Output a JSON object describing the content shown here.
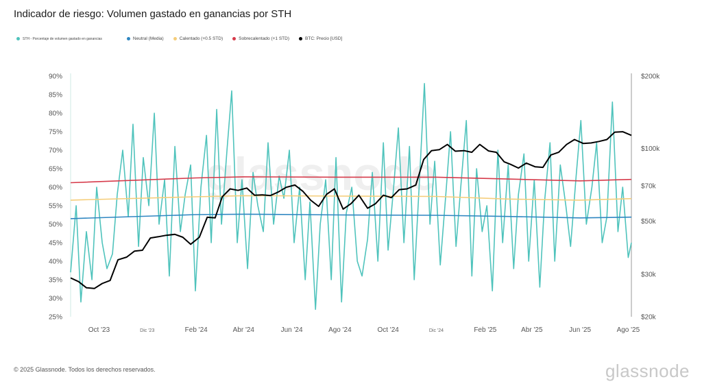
{
  "title": "Indicador de riesgo: Volumen gastado en ganancias por STH",
  "legend": [
    {
      "label": "STH - Porcentaje de volumen gastado en ganancias",
      "color": "#4fc3bc"
    },
    {
      "label": "Neutral (Media)",
      "color": "#2e86c1"
    },
    {
      "label": "Calentado (+0.5 STD)",
      "color": "#f5cd79"
    },
    {
      "label": "Sobrecalentado (+1 STD)",
      "color": "#d63a4a"
    },
    {
      "label": "BTC: Precio [USD]",
      "color": "#000000"
    }
  ],
  "footer": "© 2025 Glassnode. Todos los derechos reservados.",
  "brand": "glassnode",
  "watermark": "glassnode",
  "colors": {
    "sth": "#4fc3bc",
    "neutral": "#2e86c1",
    "heated": "#f5cd79",
    "overheated": "#d63a4a",
    "price": "#000000"
  },
  "chart_data": {
    "type": "line",
    "x_start": "2023-08-26",
    "x_end": "2025-08-05",
    "x_ticks": [
      {
        "label": "Oct '23",
        "date": "2023-10-01",
        "small": false
      },
      {
        "label": "Dic '23",
        "date": "2023-12-01",
        "small": true
      },
      {
        "label": "Feb '24",
        "date": "2024-02-01",
        "small": false
      },
      {
        "label": "Abr '24",
        "date": "2024-04-01",
        "small": false
      },
      {
        "label": "Jun '24",
        "date": "2024-06-01",
        "small": false
      },
      {
        "label": "Ago '24",
        "date": "2024-08-01",
        "small": false
      },
      {
        "label": "Oct '24",
        "date": "2024-10-01",
        "small": false
      },
      {
        "label": "Dic '24",
        "date": "2024-12-01",
        "small": true
      },
      {
        "label": "Feb '25",
        "date": "2025-02-01",
        "small": false
      },
      {
        "label": "Abr '25",
        "date": "2025-04-01",
        "small": false
      },
      {
        "label": "Jun '25",
        "date": "2025-06-01",
        "small": false
      },
      {
        "label": "Ago '25",
        "date": "2025-08-01",
        "small": false
      }
    ],
    "y_left": {
      "min": 25,
      "max": 90,
      "ticks": [
        "25%",
        "30%",
        "35%",
        "40%",
        "45%",
        "50%",
        "55%",
        "60%",
        "65%",
        "70%",
        "75%",
        "80%",
        "85%",
        "90%"
      ],
      "tick_values": [
        25,
        30,
        35,
        40,
        45,
        50,
        55,
        60,
        65,
        70,
        75,
        80,
        85,
        90
      ]
    },
    "y_right": {
      "scale": "log",
      "min": 20000,
      "max": 200000,
      "ticks": [
        "$20k",
        "$30k",
        "$50k",
        "$70k",
        "$100k",
        "$200k"
      ],
      "tick_values": [
        20000,
        30000,
        50000,
        70000,
        100000,
        200000
      ]
    },
    "series": [
      {
        "name": "STH - Porcentaje de volumen gastado en ganancias",
        "axis": "left",
        "x": [
          "2023-08-26",
          "2023-09-02",
          "2023-09-08",
          "2023-09-15",
          "2023-09-22",
          "2023-09-28",
          "2023-10-05",
          "2023-10-11",
          "2023-10-18",
          "2023-10-24",
          "2023-10-31",
          "2023-11-07",
          "2023-11-13",
          "2023-11-20",
          "2023-11-26",
          "2023-12-03",
          "2023-12-10",
          "2023-12-16",
          "2023-12-23",
          "2023-12-29",
          "2024-01-05",
          "2024-01-12",
          "2024-01-18",
          "2024-01-25",
          "2024-01-31",
          "2024-02-07",
          "2024-02-14",
          "2024-02-20",
          "2024-02-27",
          "2024-03-04",
          "2024-03-11",
          "2024-03-17",
          "2024-03-24",
          "2024-03-30",
          "2024-04-06",
          "2024-04-13",
          "2024-04-19",
          "2024-04-26",
          "2024-05-02",
          "2024-05-09",
          "2024-05-16",
          "2024-05-22",
          "2024-05-29",
          "2024-06-04",
          "2024-06-11",
          "2024-06-18",
          "2024-06-24",
          "2024-07-01",
          "2024-07-07",
          "2024-07-14",
          "2024-07-21",
          "2024-07-27",
          "2024-08-03",
          "2024-08-09",
          "2024-08-16",
          "2024-08-23",
          "2024-08-29",
          "2024-09-05",
          "2024-09-11",
          "2024-09-18",
          "2024-09-25",
          "2024-10-01",
          "2024-10-08",
          "2024-10-14",
          "2024-10-21",
          "2024-10-28",
          "2024-11-03",
          "2024-11-10",
          "2024-11-16",
          "2024-11-23",
          "2024-11-29",
          "2024-12-06",
          "2024-12-13",
          "2024-12-19",
          "2024-12-26",
          "2025-01-01",
          "2025-01-08",
          "2025-01-15",
          "2025-01-21",
          "2025-01-28",
          "2025-02-03",
          "2025-02-10",
          "2025-02-17",
          "2025-02-23",
          "2025-03-02",
          "2025-03-09",
          "2025-03-15",
          "2025-03-22",
          "2025-03-28",
          "2025-04-04",
          "2025-04-11",
          "2025-04-17",
          "2025-04-24",
          "2025-04-30",
          "2025-05-07",
          "2025-05-14",
          "2025-05-20",
          "2025-05-27",
          "2025-06-02",
          "2025-06-09",
          "2025-06-16",
          "2025-06-22",
          "2025-06-29",
          "2025-07-05",
          "2025-07-12",
          "2025-07-19",
          "2025-07-25",
          "2025-08-01",
          "2025-08-05"
        ],
        "values": [
          37,
          55,
          29,
          48,
          35,
          60,
          45,
          38,
          42,
          58,
          70,
          52,
          77,
          44,
          68,
          55,
          80,
          50,
          62,
          36,
          71,
          48,
          58,
          66,
          32,
          60,
          74,
          45,
          81,
          50,
          70,
          86,
          45,
          62,
          38,
          64,
          55,
          48,
          72,
          50,
          63,
          57,
          70,
          45,
          60,
          35,
          56,
          27,
          50,
          62,
          35,
          68,
          29,
          53,
          60,
          40,
          36,
          46,
          64,
          40,
          72,
          43,
          60,
          76,
          45,
          71,
          35,
          63,
          88,
          50,
          67,
          39,
          58,
          75,
          44,
          60,
          78,
          36,
          65,
          48,
          55,
          32,
          70,
          45,
          66,
          38,
          58,
          69,
          40,
          62,
          33,
          56,
          72,
          40,
          66,
          55,
          44,
          63,
          78,
          50,
          60,
          72,
          45,
          52,
          83,
          48,
          60,
          41,
          45
        ]
      },
      {
        "name": "Neutral (Media)",
        "axis": "left",
        "x": [
          "2023-08-26",
          "2024-02-01",
          "2024-04-01",
          "2024-08-01",
          "2024-12-01",
          "2025-03-01",
          "2025-06-01",
          "2025-08-05"
        ],
        "values": [
          51.5,
          52.6,
          52.7,
          52.5,
          52.4,
          52.1,
          51.7,
          51.9
        ]
      },
      {
        "name": "Calentado (+0.5 STD)",
        "axis": "left",
        "x": [
          "2023-08-26",
          "2024-02-01",
          "2024-04-01",
          "2024-08-01",
          "2024-12-01",
          "2025-03-01",
          "2025-06-01",
          "2025-08-05"
        ],
        "values": [
          56.5,
          57.4,
          57.7,
          57.6,
          57.5,
          56.8,
          56.5,
          56.9
        ]
      },
      {
        "name": "Sobrecalentado (+1 STD)",
        "axis": "left",
        "x": [
          "2023-08-26",
          "2024-02-01",
          "2024-04-01",
          "2024-08-01",
          "2024-12-01",
          "2025-03-01",
          "2025-06-01",
          "2025-08-05"
        ],
        "values": [
          61.2,
          62.5,
          62.8,
          62.7,
          62.7,
          62.2,
          61.7,
          62.1
        ]
      },
      {
        "name": "BTC: Precio [USD]",
        "axis": "right",
        "x": [
          "2023-08-26",
          "2023-09-05",
          "2023-09-15",
          "2023-09-25",
          "2023-10-05",
          "2023-10-15",
          "2023-10-25",
          "2023-11-05",
          "2023-11-15",
          "2023-11-25",
          "2023-12-05",
          "2023-12-15",
          "2023-12-25",
          "2024-01-05",
          "2024-01-15",
          "2024-01-25",
          "2024-02-05",
          "2024-02-15",
          "2024-02-25",
          "2024-03-05",
          "2024-03-15",
          "2024-03-25",
          "2024-04-05",
          "2024-04-15",
          "2024-04-25",
          "2024-05-05",
          "2024-05-15",
          "2024-05-25",
          "2024-06-05",
          "2024-06-15",
          "2024-06-25",
          "2024-07-05",
          "2024-07-15",
          "2024-07-25",
          "2024-08-05",
          "2024-08-15",
          "2024-08-25",
          "2024-09-05",
          "2024-09-15",
          "2024-09-25",
          "2024-10-05",
          "2024-10-15",
          "2024-10-25",
          "2024-11-05",
          "2024-11-15",
          "2024-11-25",
          "2024-12-05",
          "2024-12-15",
          "2024-12-25",
          "2025-01-05",
          "2025-01-15",
          "2025-01-25",
          "2025-02-05",
          "2025-02-15",
          "2025-02-25",
          "2025-03-05",
          "2025-03-15",
          "2025-03-25",
          "2025-04-05",
          "2025-04-15",
          "2025-04-25",
          "2025-05-05",
          "2025-05-15",
          "2025-05-25",
          "2025-06-05",
          "2025-06-15",
          "2025-06-25",
          "2025-07-05",
          "2025-07-15",
          "2025-07-25",
          "2025-08-05"
        ],
        "values": [
          29000,
          28000,
          26400,
          26200,
          27500,
          28300,
          34500,
          35400,
          37500,
          37800,
          42500,
          43000,
          43600,
          44000,
          42800,
          40000,
          42800,
          51800,
          51500,
          63000,
          68000,
          67000,
          68500,
          64000,
          64200,
          63800,
          66000,
          69000,
          70500,
          66500,
          61000,
          57500,
          64500,
          68000,
          56000,
          59000,
          64000,
          56500,
          59000,
          64000,
          62500,
          67500,
          68000,
          70500,
          90000,
          98000,
          99000,
          104000,
          97500,
          98000,
          96500,
          104000,
          97800,
          96500,
          88000,
          86000,
          83000,
          87000,
          84000,
          83500,
          94000,
          96500,
          104000,
          109000,
          105000,
          105500,
          107000,
          109000,
          117000,
          117500,
          113500
        ]
      }
    ]
  }
}
